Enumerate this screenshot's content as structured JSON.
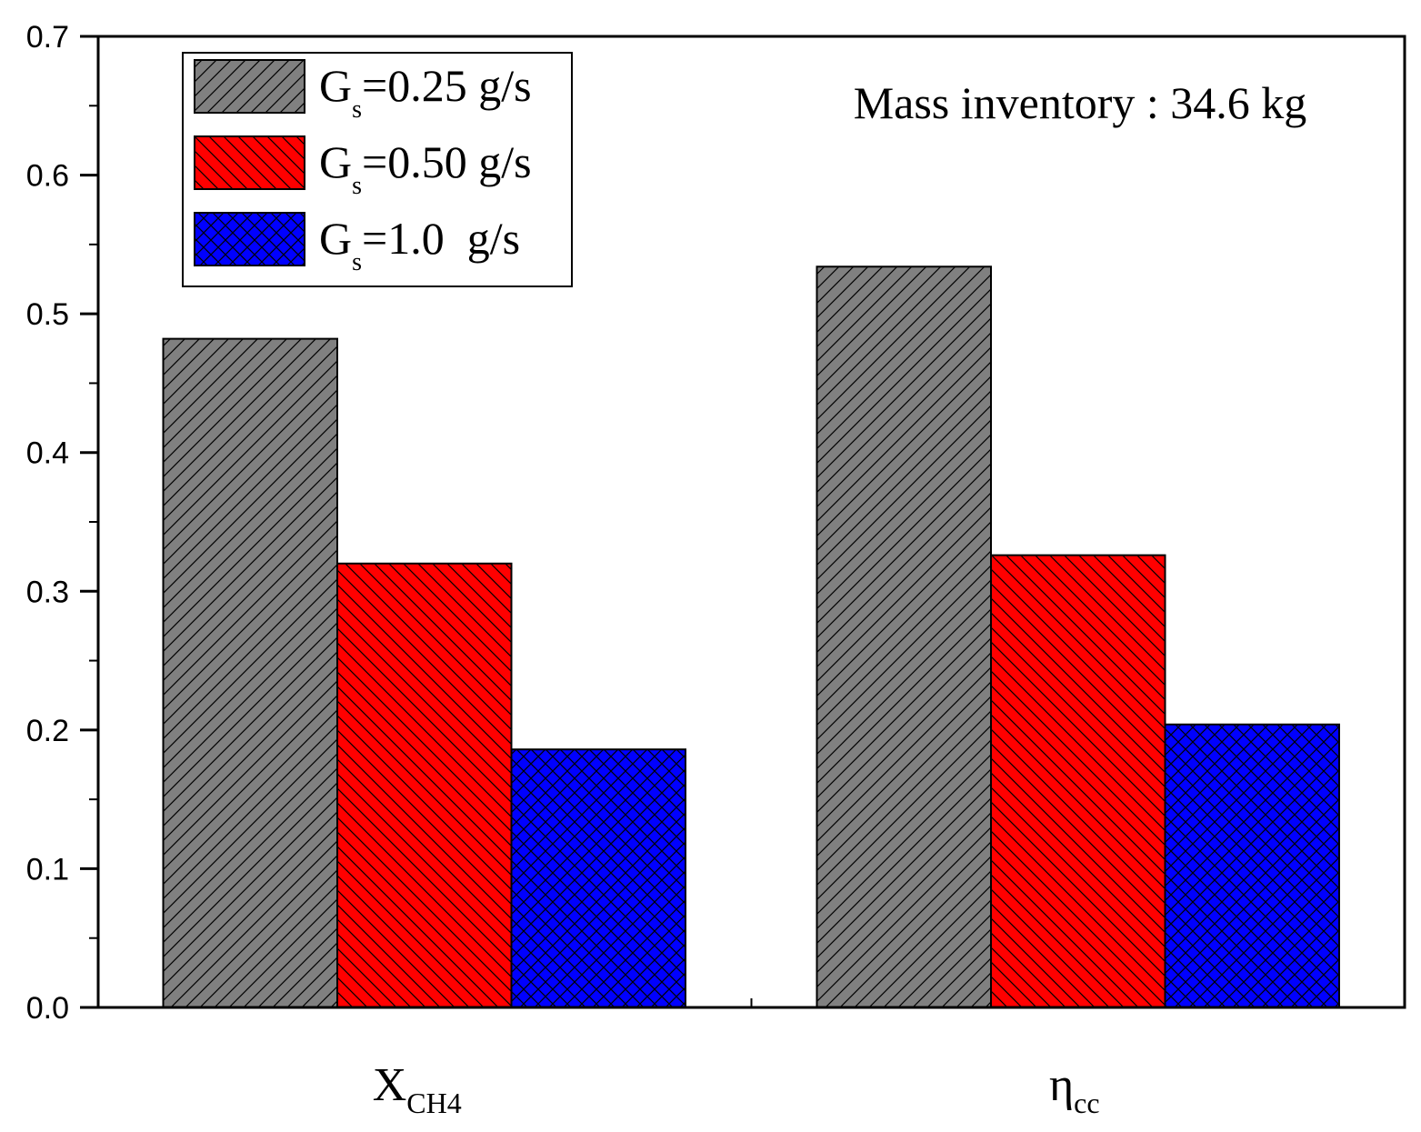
{
  "chart_data": {
    "type": "bar",
    "title": "",
    "annotation": "Mass inventory : 34.6 kg",
    "categories": [
      {
        "main": "X",
        "sub": "CH4"
      },
      {
        "main": "η",
        "sub": "cc"
      }
    ],
    "series": [
      {
        "name": "G",
        "name_sub": "s",
        "name_rest": "=0.25 g/s",
        "values": [
          0.482,
          0.534
        ],
        "color": "#808080",
        "pattern": "hatch-right"
      },
      {
        "name": "G",
        "name_sub": "s",
        "name_rest": "=0.50 g/s",
        "values": [
          0.32,
          0.326
        ],
        "color": "#ff0000",
        "pattern": "hatch-left"
      },
      {
        "name": "G",
        "name_sub": "s",
        "name_rest": "=1.0  g/s",
        "values": [
          0.186,
          0.204
        ],
        "color": "#0000ff",
        "pattern": "crosshatch"
      }
    ],
    "ylim": [
      0,
      0.7
    ],
    "yticks": [
      "0.0",
      "0.1",
      "0.2",
      "0.3",
      "0.4",
      "0.5",
      "0.6",
      "0.7"
    ],
    "xlabel": "",
    "ylabel": "",
    "legend": "top-left",
    "grid": false
  }
}
